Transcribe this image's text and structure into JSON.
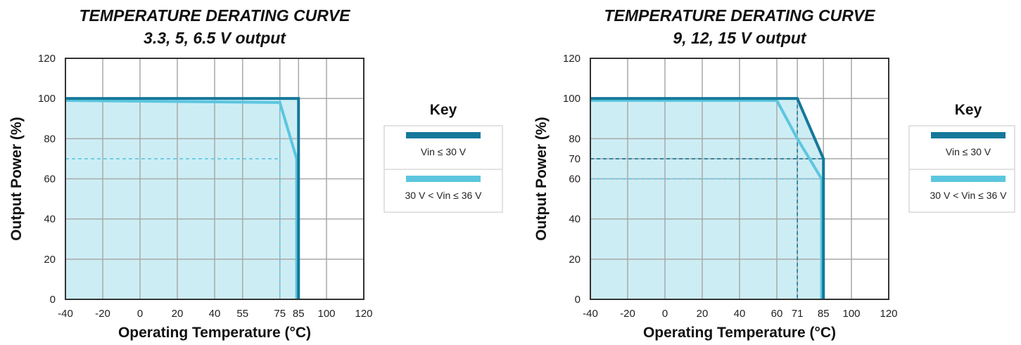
{
  "colors": {
    "dark_series": "#15789a",
    "light_series": "#5cc6df",
    "fill": "#cdedf4",
    "grid": "#a9a9a9",
    "frame": "#333333"
  },
  "chart_data": [
    {
      "type": "line",
      "title": "TEMPERATURE DERATING CURVE",
      "subtitle": "3.3, 5, 6.5 V output",
      "xlabel": "Operating Temperature (°C)",
      "ylabel": "Output Power (%)",
      "xlim": [
        -40,
        120
      ],
      "ylim": [
        0,
        120
      ],
      "x_ticks": [
        -40,
        -20,
        0,
        20,
        40,
        55,
        75,
        85,
        100,
        120
      ],
      "y_ticks": [
        0,
        20,
        40,
        60,
        80,
        100,
        120
      ],
      "grid": true,
      "series": [
        {
          "name": "Vin ≤ 30 V",
          "x": [
            -40,
            85,
            85
          ],
          "y": [
            100,
            100,
            0
          ]
        },
        {
          "name": "30 V < Vin ≤ 36 V",
          "x": [
            -40,
            75,
            84,
            84
          ],
          "y": [
            99,
            98,
            70,
            0
          ]
        }
      ],
      "reference_lines": [
        {
          "series": 1,
          "x": [
            -40,
            75
          ],
          "y": [
            70,
            70
          ]
        },
        {
          "series": 1,
          "x": [
            75,
            75
          ],
          "y": [
            98,
            0
          ]
        }
      ],
      "key": {
        "title": "Key",
        "entries": [
          "Vin ≤ 30 V",
          "30 V < Vin ≤ 36 V"
        ]
      }
    },
    {
      "type": "line",
      "title": "TEMPERATURE DERATING CURVE",
      "subtitle": "9, 12, 15 V output",
      "xlabel": "Operating Temperature (°C)",
      "ylabel": "Output Power (%)",
      "xlim": [
        -40,
        120
      ],
      "ylim": [
        0,
        120
      ],
      "x_ticks": [
        -40,
        -20,
        0,
        20,
        40,
        60,
        71,
        85,
        100,
        120
      ],
      "y_ticks": [
        0,
        20,
        40,
        60,
        70,
        80,
        100,
        120
      ],
      "grid": true,
      "series": [
        {
          "name": "Vin ≤ 30 V",
          "x": [
            -40,
            71,
            85,
            85
          ],
          "y": [
            100,
            100,
            70,
            0
          ]
        },
        {
          "name": "30 V < Vin ≤ 36 V",
          "x": [
            -40,
            60,
            71,
            84,
            84
          ],
          "y": [
            99,
            99,
            80,
            60,
            0
          ]
        }
      ],
      "reference_lines": [
        {
          "series": 0,
          "x": [
            -40,
            85
          ],
          "y": [
            70,
            70
          ]
        },
        {
          "series": 0,
          "x": [
            71,
            71
          ],
          "y": [
            100,
            0
          ]
        },
        {
          "series": 1,
          "x": [
            -40,
            84
          ],
          "y": [
            60,
            60
          ]
        }
      ],
      "key": {
        "title": "Key",
        "entries": [
          "Vin ≤ 30 V",
          "30 V < Vin ≤ 36 V"
        ]
      }
    }
  ]
}
